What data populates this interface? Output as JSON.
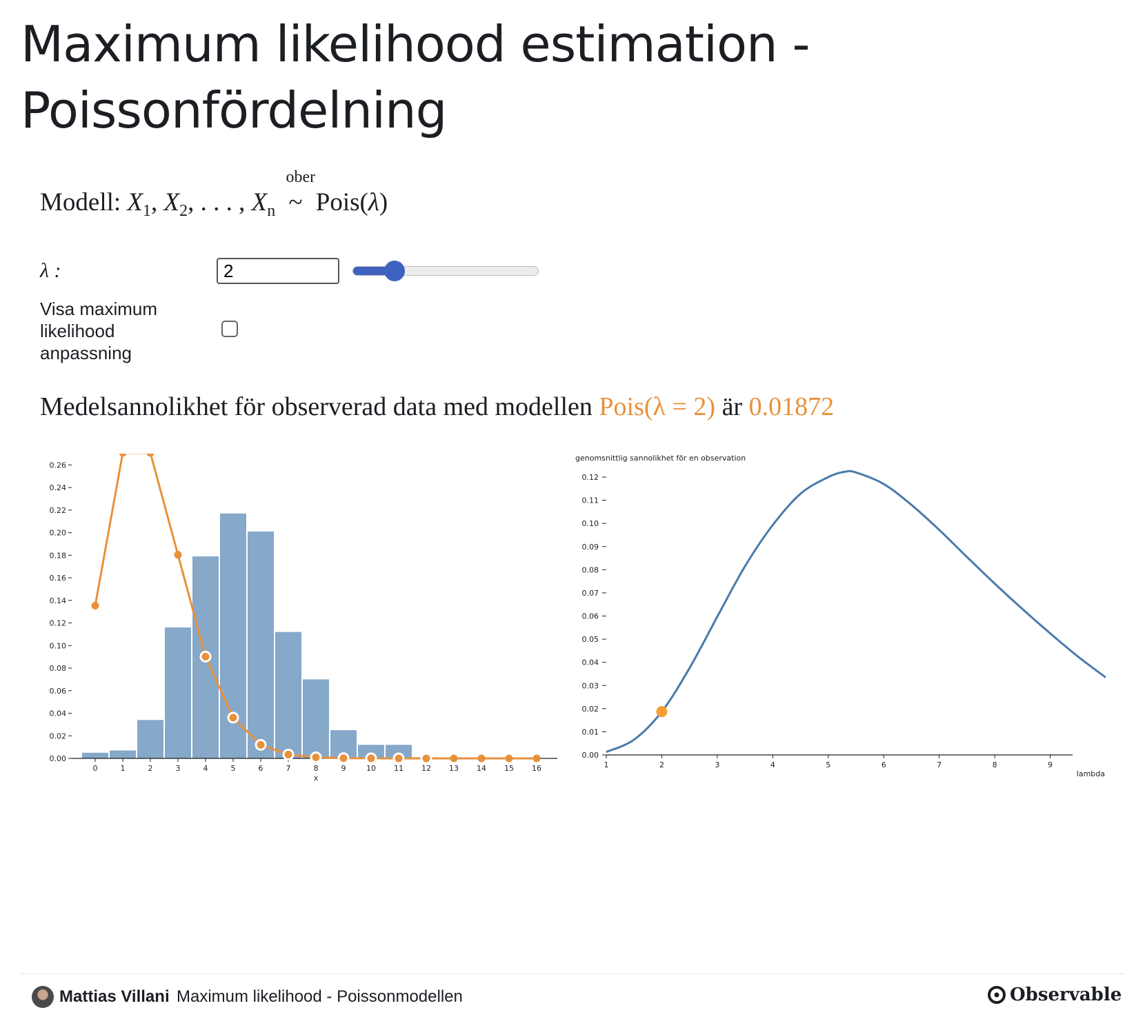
{
  "title": "Maximum likelihood estimation - Poissonfördelning",
  "model": {
    "label": "Modell:",
    "x1": "X",
    "s1": "1",
    "x2": "X",
    "s2": "2",
    "dots": ", . . . ,",
    "xn": "X",
    "sn": "n",
    "ober": "ober",
    "tilde": "~",
    "dist": "Pois(",
    "lambda": "λ",
    "close": ")"
  },
  "controls": {
    "lambda_label": "λ :",
    "lambda_value": "2",
    "slider_fraction": 0.2222,
    "checkbox_label": "Visa maximum likelihood anpassning",
    "checkbox_checked": false
  },
  "summary": {
    "prefix": "Medelsannolikhet för observerad data med modellen",
    "model_text": "Pois(λ = 2)",
    "middle": "är",
    "value": "0.01872"
  },
  "colors": {
    "bar": "#86a8c9",
    "poisson_line": "#e8913a",
    "likelihood_line": "#4a7aab",
    "marker": "#f5a033",
    "slider": "#3f62c0"
  },
  "chart_data": [
    {
      "type": "bar",
      "xlabel": "x",
      "ylabel": "",
      "ylim": [
        0,
        0.27
      ],
      "yticks": [
        0.0,
        0.02,
        0.04,
        0.06,
        0.08,
        0.1,
        0.12,
        0.14,
        0.16,
        0.18,
        0.2,
        0.22,
        0.24,
        0.26
      ],
      "categories": [
        "0",
        "1",
        "2",
        "3",
        "4",
        "5",
        "6",
        "7",
        "8",
        "9",
        "10",
        "11",
        "12",
        "13",
        "14",
        "15",
        "16"
      ],
      "series": [
        {
          "type": "bar",
          "values": [
            0.005,
            0.007,
            0.034,
            0.116,
            0.179,
            0.217,
            0.201,
            0.112,
            0.07,
            0.025,
            0.012,
            0.012,
            0.001,
            0.0,
            0.0,
            0.0,
            0.0
          ]
        },
        {
          "type": "line",
          "values": [
            0.1353,
            0.2707,
            0.2707,
            0.1804,
            0.0902,
            0.0361,
            0.012,
            0.0034,
            0.0009,
            0.0002,
            4e-05,
            7e-06,
            1e-06,
            0.0,
            0.0,
            0.0,
            0.0
          ]
        }
      ]
    },
    {
      "type": "line",
      "title": "genomsnittlig sannolikhet för en observation",
      "xlabel": "lambda",
      "xlim": [
        1,
        10
      ],
      "ylim": [
        0,
        0.12
      ],
      "xticks": [
        1,
        2,
        3,
        4,
        5,
        6,
        7,
        8,
        9
      ],
      "yticks": [
        0.0,
        0.01,
        0.02,
        0.03,
        0.04,
        0.05,
        0.06,
        0.07,
        0.08,
        0.09,
        0.1,
        0.11,
        0.12
      ],
      "series": [
        {
          "x": [
            1.0,
            1.5,
            2.0,
            2.5,
            3.0,
            3.5,
            4.0,
            4.5,
            5.0,
            5.3,
            5.5,
            6.0,
            6.5,
            7.0,
            7.5,
            8.0,
            8.5,
            9.0,
            9.5,
            10.0
          ],
          "y": [
            0.0013,
            0.0066,
            0.0187,
            0.0375,
            0.0597,
            0.0815,
            0.0993,
            0.1128,
            0.12,
            0.1223,
            0.122,
            0.117,
            0.108,
            0.0972,
            0.0855,
            0.074,
            0.063,
            0.0525,
            0.0425,
            0.0335
          ]
        }
      ],
      "marker": {
        "x": 2,
        "y": 0.01872
      }
    }
  ],
  "footer": {
    "author": "Mattias Villani",
    "notebook_title": "Maximum likelihood - Poissonmodellen",
    "brand": "Observable"
  }
}
